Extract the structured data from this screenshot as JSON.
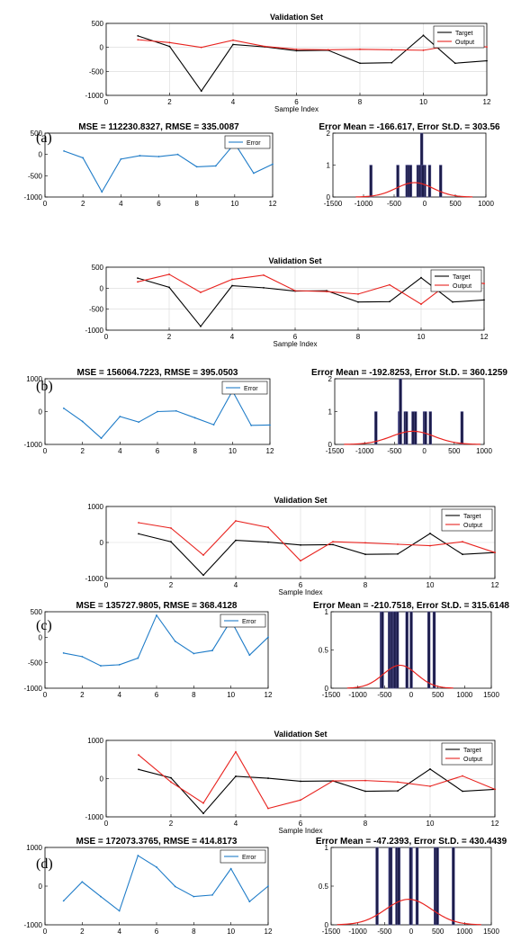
{
  "colors": {
    "target": "#000000",
    "output": "#e8231f",
    "error": "#1f7cc8",
    "bar": "#1c1c4a",
    "fit": "#e8231f",
    "grid": "#d8d8d8"
  },
  "chart_data": [
    {
      "panel": "(a)",
      "validation": {
        "type": "line",
        "title": "Validation Set",
        "xlabel": "Sample Index",
        "xlim": [
          0,
          12
        ],
        "ylim": [
          -1000,
          500
        ],
        "xticks": [
          0,
          2,
          4,
          6,
          8,
          10,
          12
        ],
        "yticks": [
          -1000,
          -500,
          0,
          500
        ],
        "legend": "top-right",
        "x": [
          1,
          2,
          3,
          4,
          5,
          6,
          7,
          8,
          9,
          10,
          11,
          12
        ],
        "series": [
          {
            "name": "Target",
            "values": [
              240,
              20,
              -910,
              60,
              10,
              -70,
              -60,
              -330,
              -320,
              250,
              -330,
              -280
            ]
          },
          {
            "name": "Output",
            "values": [
              160,
              100,
              0,
              150,
              20,
              -40,
              -50,
              -40,
              -50,
              -60,
              50,
              10
            ]
          }
        ]
      },
      "error": {
        "type": "line",
        "title": "MSE = 112230.8327, RMSE = 335.0087",
        "xlim": [
          0,
          12
        ],
        "ylim": [
          -1000,
          500
        ],
        "xticks": [
          0,
          2,
          4,
          6,
          8,
          10,
          12
        ],
        "yticks": [
          -1000,
          -500,
          0,
          500
        ],
        "legend": "top-right",
        "x": [
          1,
          2,
          3,
          4,
          5,
          6,
          7,
          8,
          9,
          10,
          11,
          12
        ],
        "series": [
          {
            "name": "Error",
            "values": [
              80,
              -80,
              -880,
              -110,
              -30,
              -50,
              0,
              -290,
              -270,
              260,
              -440,
              -230
            ]
          }
        ]
      },
      "hist": {
        "type": "bar",
        "title": "Error Mean = -166.617, Error St.D. = 303.56",
        "xlim": [
          -1500,
          1000
        ],
        "ylim": [
          0,
          2
        ],
        "xticks": [
          -1500,
          -1000,
          -500,
          0,
          500,
          1000
        ],
        "yticks": [
          0,
          1,
          2
        ],
        "bars": [
          [
            -880,
            1
          ],
          [
            -440,
            1
          ],
          [
            -290,
            1
          ],
          [
            -270,
            1
          ],
          [
            -230,
            1
          ],
          [
            -110,
            1
          ],
          [
            -80,
            1
          ],
          [
            -50,
            2
          ],
          [
            -30,
            1
          ],
          [
            0,
            1
          ],
          [
            80,
            1
          ],
          [
            260,
            1
          ]
        ],
        "fit": {
          "mean": -166.617,
          "std": 303.56,
          "peak": 0.45
        }
      }
    },
    {
      "panel": "(b)",
      "validation": {
        "type": "line",
        "title": "Validation Set",
        "xlabel": "Sample Index",
        "xlim": [
          0,
          12
        ],
        "ylim": [
          -1000,
          500
        ],
        "xticks": [
          0,
          2,
          4,
          6,
          8,
          10,
          12
        ],
        "yticks": [
          -1000,
          -500,
          0,
          500
        ],
        "legend": "top-right",
        "x": [
          1,
          2,
          3,
          4,
          5,
          6,
          7,
          8,
          9,
          10,
          11,
          12
        ],
        "series": [
          {
            "name": "Target",
            "values": [
              240,
              20,
              -910,
              60,
              10,
              -70,
              -60,
              -330,
              -320,
              250,
              -330,
              -280
            ]
          },
          {
            "name": "Output",
            "values": [
              150,
              330,
              -100,
              210,
              310,
              -60,
              -80,
              -140,
              80,
              -380,
              190,
              110
            ]
          }
        ]
      },
      "error": {
        "type": "line",
        "title": "MSE = 156064.7223, RMSE = 395.0503",
        "xlim": [
          0,
          12
        ],
        "ylim": [
          -1000,
          1000
        ],
        "xticks": [
          0,
          2,
          4,
          6,
          8,
          10,
          12
        ],
        "yticks": [
          -1000,
          0,
          1000
        ],
        "legend": "top-right",
        "x": [
          1,
          2,
          3,
          4,
          5,
          6,
          7,
          8,
          9,
          10,
          11,
          12
        ],
        "series": [
          {
            "name": "Error",
            "values": [
              100,
              -300,
              -810,
              -150,
              -320,
              0,
              20,
              -190,
              -400,
              630,
              -420,
              -410
            ]
          }
        ]
      },
      "hist": {
        "type": "bar",
        "title": "Error Mean = -192.8253, Error St.D. = 360.1259",
        "xlim": [
          -1500,
          1000
        ],
        "ylim": [
          0,
          2
        ],
        "xticks": [
          -1500,
          -1000,
          -500,
          0,
          500,
          1000
        ],
        "yticks": [
          0,
          1,
          2
        ],
        "bars": [
          [
            -810,
            1
          ],
          [
            -420,
            1
          ],
          [
            -410,
            1
          ],
          [
            -400,
            2
          ],
          [
            -320,
            1
          ],
          [
            -300,
            1
          ],
          [
            -190,
            1
          ],
          [
            -150,
            1
          ],
          [
            0,
            1
          ],
          [
            20,
            1
          ],
          [
            100,
            1
          ],
          [
            630,
            1
          ]
        ],
        "fit": {
          "mean": -192.8253,
          "std": 360.1259,
          "peak": 0.4
        }
      }
    },
    {
      "panel": "(c)",
      "validation": {
        "type": "line",
        "title": "Validation Set",
        "xlabel": "Sample Index",
        "xlim": [
          0,
          12
        ],
        "ylim": [
          -1000,
          1000
        ],
        "xticks": [
          0,
          2,
          4,
          6,
          8,
          10,
          12
        ],
        "yticks": [
          -1000,
          0,
          1000
        ],
        "legend": "top-right",
        "x": [
          1,
          2,
          3,
          4,
          5,
          6,
          7,
          8,
          9,
          10,
          11,
          12
        ],
        "series": [
          {
            "name": "Target",
            "values": [
              240,
              20,
              -910,
              60,
              10,
              -70,
              -60,
              -330,
              -320,
              250,
              -330,
              -280
            ]
          },
          {
            "name": "Output",
            "values": [
              550,
              400,
              -350,
              600,
              420,
              -510,
              20,
              -10,
              -50,
              -90,
              20,
              -280
            ]
          }
        ]
      },
      "error": {
        "type": "line",
        "title": "MSE = 135727.9805, RMSE = 368.4128",
        "xlim": [
          0,
          12
        ],
        "ylim": [
          -1000,
          500
        ],
        "xticks": [
          0,
          2,
          4,
          6,
          8,
          10,
          12
        ],
        "yticks": [
          -1000,
          -500,
          0,
          500
        ],
        "legend": "top-right",
        "x": [
          1,
          2,
          3,
          4,
          5,
          6,
          7,
          8,
          9,
          10,
          11,
          12
        ],
        "series": [
          {
            "name": "Error",
            "values": [
              -310,
              -380,
              -560,
              -540,
              -410,
              430,
              -80,
              -320,
              -260,
              330,
              -350,
              0
            ]
          }
        ]
      },
      "hist": {
        "type": "bar",
        "title": "Error Mean = -210.7518, Error St.D. = 315.6148",
        "xlim": [
          -1500,
          1500
        ],
        "ylim": [
          0,
          1
        ],
        "xticks": [
          -1500,
          -1000,
          -500,
          0,
          500,
          1000,
          1500
        ],
        "yticks": [
          0,
          0.5,
          1
        ],
        "bars": [
          [
            -560,
            1
          ],
          [
            -540,
            1
          ],
          [
            -410,
            1
          ],
          [
            -380,
            1
          ],
          [
            -350,
            1
          ],
          [
            -320,
            1
          ],
          [
            -310,
            1
          ],
          [
            -260,
            1
          ],
          [
            -80,
            1
          ],
          [
            0,
            1
          ],
          [
            330,
            1
          ],
          [
            430,
            1
          ]
        ],
        "fit": {
          "mean": -210.7518,
          "std": 315.6148,
          "peak": 0.3
        }
      }
    },
    {
      "panel": "(d)",
      "validation": {
        "type": "line",
        "title": "Validation Set",
        "xlabel": "Sample Index",
        "xlim": [
          0,
          12
        ],
        "ylim": [
          -1000,
          1000
        ],
        "xticks": [
          0,
          2,
          4,
          6,
          8,
          10,
          12
        ],
        "yticks": [
          -1000,
          0,
          1000
        ],
        "legend": "top-right",
        "x": [
          1,
          2,
          3,
          4,
          5,
          6,
          7,
          8,
          9,
          10,
          11,
          12
        ],
        "series": [
          {
            "name": "Target",
            "values": [
              240,
              20,
              -910,
              60,
              10,
              -70,
              -60,
              -330,
              -320,
              250,
              -330,
              -280
            ]
          },
          {
            "name": "Output",
            "values": [
              620,
              -90,
              -640,
              700,
              -780,
              -560,
              -60,
              -50,
              -90,
              -200,
              70,
              -280
            ]
          }
        ]
      },
      "error": {
        "type": "line",
        "title": "MSE = 172073.3765, RMSE = 414.8173",
        "xlim": [
          0,
          12
        ],
        "ylim": [
          -1000,
          1000
        ],
        "xticks": [
          0,
          2,
          4,
          6,
          8,
          10,
          12
        ],
        "yticks": [
          -1000,
          0,
          1000
        ],
        "legend": "top-right",
        "x": [
          1,
          2,
          3,
          4,
          5,
          6,
          7,
          8,
          9,
          10,
          11,
          12
        ],
        "series": [
          {
            "name": "Error",
            "values": [
              -380,
              110,
              -270,
              -640,
              790,
              490,
              -10,
              -270,
              -230,
              450,
              -400,
              0
            ]
          }
        ]
      },
      "hist": {
        "type": "bar",
        "title": "Error Mean = -47.2393, Error St.D. = 430.4439",
        "xlim": [
          -1500,
          1500
        ],
        "ylim": [
          0,
          1
        ],
        "xticks": [
          -1500,
          -1000,
          -500,
          0,
          500,
          1000,
          1500
        ],
        "yticks": [
          0,
          0.5,
          1
        ],
        "xtick_labels": [
          "-1500",
          "-1000",
          "-500",
          "0",
          "500",
          "1000",
          "1500"
        ],
        "bars": [
          [
            -640,
            1
          ],
          [
            -400,
            1
          ],
          [
            -380,
            1
          ],
          [
            -270,
            1
          ],
          [
            -270,
            1
          ],
          [
            -230,
            1
          ],
          [
            -10,
            1
          ],
          [
            0,
            1
          ],
          [
            110,
            1
          ],
          [
            450,
            1
          ],
          [
            490,
            1
          ],
          [
            790,
            1
          ]
        ],
        "fit": {
          "mean": -47.2393,
          "std": 430.4439,
          "peak": 0.33
        }
      }
    }
  ]
}
